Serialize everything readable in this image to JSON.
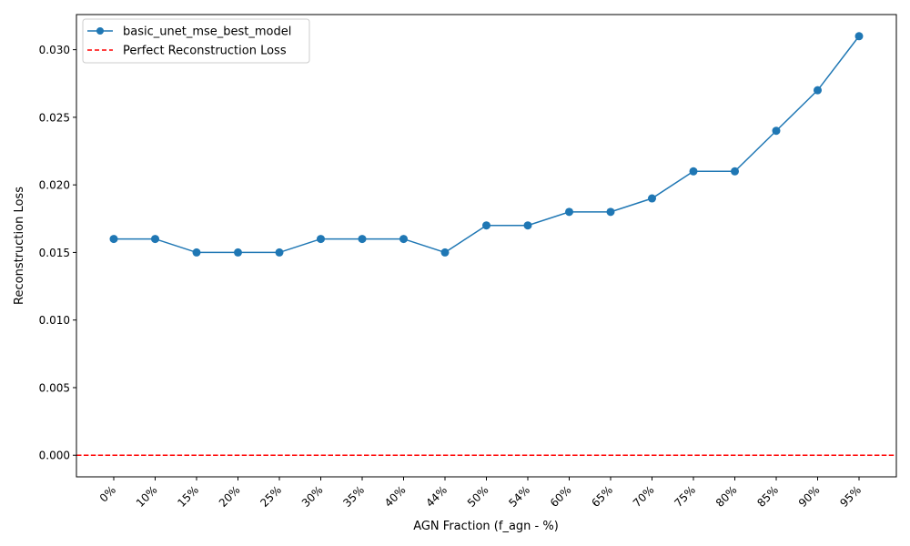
{
  "chart_data": {
    "type": "line",
    "title": "",
    "xlabel": "AGN Fraction (f_agn - %)",
    "ylabel": "Reconstruction Loss",
    "categories": [
      "0%",
      "10%",
      "15%",
      "20%",
      "25%",
      "30%",
      "35%",
      "40%",
      "44%",
      "50%",
      "54%",
      "60%",
      "65%",
      "70%",
      "75%",
      "80%",
      "85%",
      "90%",
      "95%"
    ],
    "series": [
      {
        "name": "basic_unet_mse_best_model",
        "color": "#1f77b4",
        "marker": "circle",
        "values": [
          0.016,
          0.016,
          0.015,
          0.015,
          0.015,
          0.016,
          0.016,
          0.016,
          0.015,
          0.017,
          0.017,
          0.018,
          0.018,
          0.019,
          0.021,
          0.021,
          0.024,
          0.027,
          0.031
        ]
      }
    ],
    "reference_line": {
      "name": "Perfect Reconstruction Loss",
      "value": 0.0,
      "color": "#ff0000",
      "style": "dashed"
    },
    "ylim": [
      -0.0016,
      0.0326
    ],
    "yticks": [
      "0.000",
      "0.005",
      "0.010",
      "0.015",
      "0.020",
      "0.025",
      "0.030"
    ],
    "ytick_values": [
      0.0,
      0.005,
      0.01,
      0.015,
      0.02,
      0.025,
      0.03
    ],
    "grid": false,
    "legend_position": "top-left"
  }
}
